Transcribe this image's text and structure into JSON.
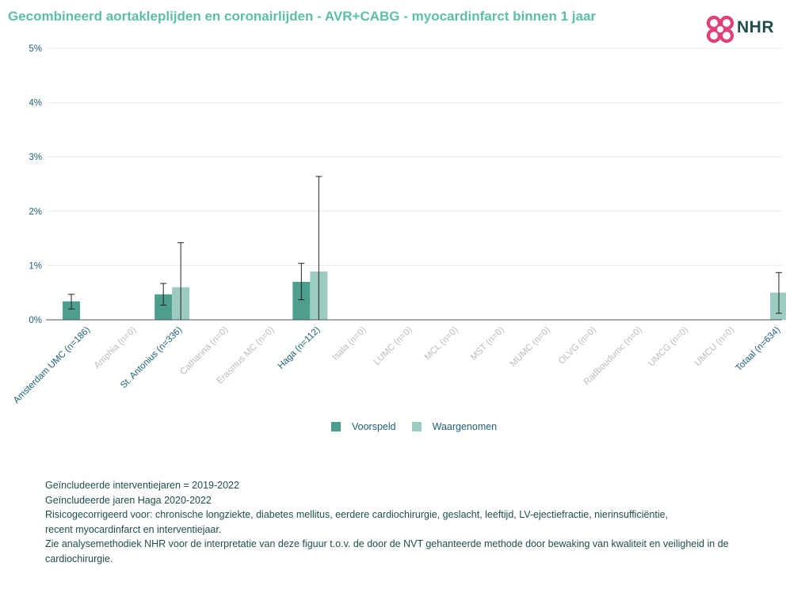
{
  "header": {
    "title": "Gecombineerd aortakleplijden en coronairlijden - AVR+CABG - myocardinfarct binnen 1 jaar",
    "logo_text": "NHR"
  },
  "colors": {
    "title": "#5bbfa8",
    "predicted": "#4e9e8d",
    "observed": "#9ccbc2",
    "tick_active": "#1b5f78",
    "tick_inactive": "#bbbbbb",
    "logo_mark": "#e0407a",
    "logo_text": "#1e4d4b"
  },
  "chart_data": {
    "type": "bar",
    "title": "Gecombineerd aortakleplijden en coronairlijden - AVR+CABG - myocardinfarct binnen 1 jaar",
    "ylim": [
      0,
      5
    ],
    "yticks": [
      {
        "value": 0,
        "label": "0%"
      },
      {
        "value": 1,
        "label": "1%"
      },
      {
        "value": 2,
        "label": "2%"
      },
      {
        "value": 3,
        "label": "3%"
      },
      {
        "value": 4,
        "label": "4%"
      },
      {
        "value": 5,
        "label": "5%"
      }
    ],
    "grid": true,
    "legend_position": "bottom-center",
    "categories": [
      {
        "label": "Amsterdam UMC (n=186)",
        "active": true
      },
      {
        "label": "Amphia (n=0)",
        "active": false
      },
      {
        "label": "St. Antonius (n=336)",
        "active": true
      },
      {
        "label": "Catharina (n=0)",
        "active": false
      },
      {
        "label": "Erasmus MC (n=0)",
        "active": false
      },
      {
        "label": "Haga (n=112)",
        "active": true
      },
      {
        "label": "Isala (n=0)",
        "active": false
      },
      {
        "label": "LUMC (n=0)",
        "active": false
      },
      {
        "label": "MCL (n=0)",
        "active": false
      },
      {
        "label": "MST (n=0)",
        "active": false
      },
      {
        "label": "MUMC (n=0)",
        "active": false
      },
      {
        "label": "OLVG (n=0)",
        "active": false
      },
      {
        "label": "Radboudumc (n=0)",
        "active": false
      },
      {
        "label": "UMCG (n=0)",
        "active": false
      },
      {
        "label": "UMCU (n=0)",
        "active": false
      },
      {
        "label": "Totaal (n=634)",
        "active": true
      }
    ],
    "series": [
      {
        "name": "Voorspeld",
        "values": [
          0.34,
          null,
          0.47,
          null,
          null,
          0.7,
          null,
          null,
          null,
          null,
          null,
          null,
          null,
          null,
          null,
          null
        ],
        "error_low": [
          0.2,
          null,
          0.27,
          null,
          null,
          0.37,
          null,
          null,
          null,
          null,
          null,
          null,
          null,
          null,
          null,
          null
        ],
        "error_high": [
          0.47,
          null,
          0.67,
          null,
          null,
          1.04,
          null,
          null,
          null,
          null,
          null,
          null,
          null,
          null,
          null,
          null
        ]
      },
      {
        "name": "Waargenomen",
        "values": [
          0.0,
          null,
          0.6,
          null,
          null,
          0.89,
          null,
          null,
          null,
          null,
          null,
          null,
          null,
          null,
          null,
          0.5
        ],
        "error_low": [
          0.0,
          null,
          0.0,
          null,
          null,
          0.0,
          null,
          null,
          null,
          null,
          null,
          null,
          null,
          null,
          null,
          0.12
        ],
        "error_high": [
          0.0,
          null,
          1.42,
          null,
          null,
          2.64,
          null,
          null,
          null,
          null,
          null,
          null,
          null,
          null,
          null,
          0.87
        ]
      }
    ]
  },
  "legend": {
    "items": [
      {
        "label": "Voorspeld"
      },
      {
        "label": "Waargenomen"
      }
    ]
  },
  "footnotes": [
    "Geïncludeerde interventiejaren = 2019-2022",
    "Geïncludeerde jaren Haga 2020-2022",
    "Risicogecorrigeerd voor: chronische longziekte, diabetes mellitus, eerdere cardiochirurgie, geslacht, leeftijd, LV-ejectiefractie, nierinsufficiëntie,",
    "recent myocardinfarct en interventiejaar.",
    "Zie analysemethodiek NHR voor de interpretatie van deze figuur t.o.v. de door de NVT gehanteerde methode door bewaking van kwaliteit en veiligheid in de cardiochirurgie."
  ]
}
